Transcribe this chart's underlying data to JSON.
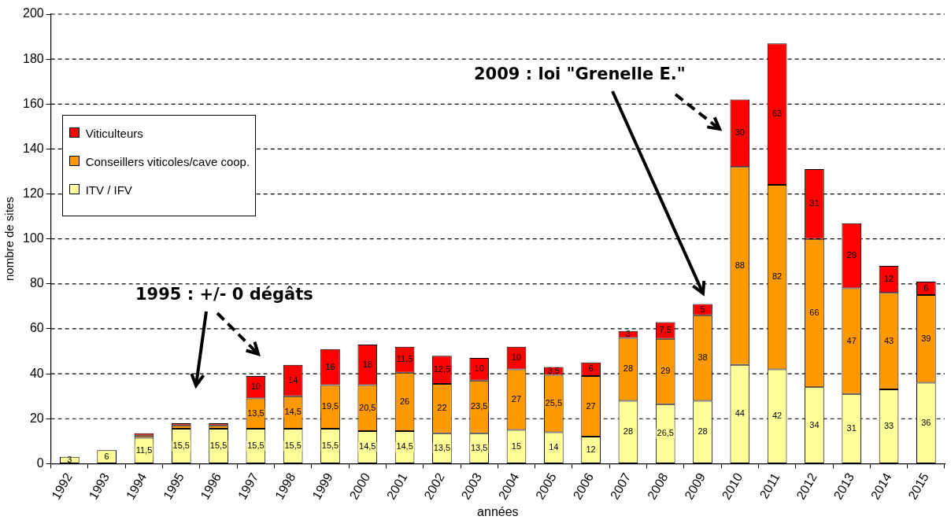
{
  "chart_data": {
    "type": "bar",
    "stacked": true,
    "xlabel": "années",
    "ylabel": "nombre de sites",
    "categories": [
      "1992",
      "1993",
      "1994",
      "1995",
      "1996",
      "1997",
      "1998",
      "1999",
      "2000",
      "2001",
      "2002",
      "2003",
      "2004",
      "2005",
      "2006",
      "2007",
      "2008",
      "2009",
      "2010",
      "2011",
      "2012",
      "2013",
      "2014",
      "2015"
    ],
    "series": [
      {
        "name": "ITV / IFV",
        "color": "#ffff99",
        "values": [
          3,
          6,
          11.5,
          15.5,
          15.5,
          15.5,
          15.5,
          15.5,
          14.5,
          14.5,
          13.5,
          13.5,
          15,
          14,
          12,
          28,
          26.5,
          28,
          44,
          42,
          34,
          31,
          33,
          36
        ],
        "value_labels": [
          "3",
          "6",
          "11,5",
          "15,5",
          "15,5",
          "15,5",
          "15,5",
          "15,5",
          "14,5",
          "14,5",
          "13,5",
          "13,5",
          "15",
          "14",
          "12",
          "28",
          "26,5",
          "28",
          "44",
          "42",
          "34",
          "31",
          "33",
          "36"
        ]
      },
      {
        "name": "Conseillers viticoles/cave coop.",
        "color": "#ff9900",
        "values": [
          null,
          null,
          1,
          1.5,
          1.5,
          13.5,
          14.5,
          19.5,
          20.5,
          26,
          22,
          23.5,
          27,
          25.5,
          27,
          28,
          29,
          38,
          88,
          82,
          66,
          47,
          43,
          39
        ],
        "value_labels": [
          null,
          null,
          null,
          null,
          null,
          "13,5",
          "14,5",
          "19,5",
          "20,5",
          "26",
          "22",
          "23,5",
          "27",
          "25,5",
          "27",
          "28",
          "29",
          "38",
          "88",
          "82",
          "66",
          "47",
          "43",
          "39"
        ]
      },
      {
        "name": "Viticulteurs",
        "color": "#ff0000",
        "values": [
          null,
          null,
          1,
          1,
          1,
          10,
          14,
          16,
          18,
          11.5,
          12.5,
          10,
          10,
          3.5,
          6,
          3,
          7.5,
          5,
          30,
          63,
          31,
          29,
          12,
          6
        ],
        "value_labels": [
          null,
          null,
          null,
          null,
          null,
          "10",
          "14",
          "16",
          "18",
          "11,5",
          "12,5",
          "10",
          "10",
          "3,5",
          "6",
          "3",
          "7,5",
          "5",
          "30",
          "63",
          "31",
          "29",
          "12",
          "6"
        ]
      }
    ],
    "ylim": [
      0,
      200
    ],
    "yticks": [
      0,
      20,
      40,
      60,
      80,
      100,
      120,
      140,
      160,
      180,
      200
    ],
    "grid": "y",
    "legend": "top left",
    "annotations": [
      "1995 : +/- 0 dégâts",
      "2009 : loi \"Grenelle E.\""
    ]
  }
}
